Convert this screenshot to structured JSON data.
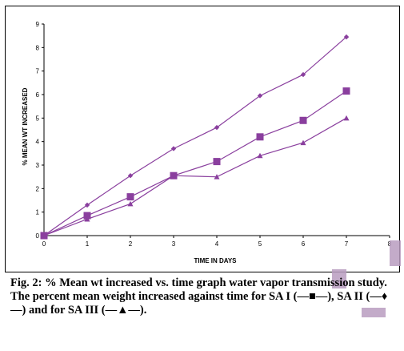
{
  "chart_data": {
    "type": "line",
    "xlabel": "TIME IN DAYS",
    "ylabel": "% MEAN WT INCREASED",
    "xlim": [
      0,
      8
    ],
    "ylim": [
      0,
      9
    ],
    "x_ticks": [
      "0",
      "1",
      "2",
      "3",
      "4",
      "5",
      "6",
      "7",
      "8"
    ],
    "y_ticks": [
      "0",
      "1",
      "2",
      "3",
      "4",
      "5",
      "6",
      "7",
      "8",
      "9"
    ],
    "grid": false,
    "legend": "none",
    "series": [
      {
        "marker": "diamond",
        "color": "#8a3f9e",
        "x": [
          0,
          1,
          2,
          3,
          4,
          5,
          6,
          7
        ],
        "y": [
          0,
          1.3,
          2.55,
          3.7,
          4.6,
          5.95,
          6.85,
          8.45
        ]
      },
      {
        "marker": "square",
        "color": "#8a3f9e",
        "x": [
          0,
          1,
          2,
          3,
          4,
          5,
          6,
          7
        ],
        "y": [
          0,
          0.85,
          1.65,
          2.55,
          3.15,
          4.2,
          4.9,
          6.15
        ]
      },
      {
        "marker": "triangle",
        "color": "#8a3f9e",
        "x": [
          0,
          1,
          2,
          3,
          4,
          5,
          6,
          7
        ],
        "y": [
          0,
          0.7,
          1.35,
          2.55,
          2.5,
          3.4,
          3.95,
          5.0
        ]
      }
    ]
  },
  "caption": {
    "title": "Fig. 2: % Mean wt increased vs. time graph water vapor transmission study.",
    "text": "The percent mean weight increased against time for SA I (—■—), SA II (—♦—) and for SA III (—▲—)."
  }
}
